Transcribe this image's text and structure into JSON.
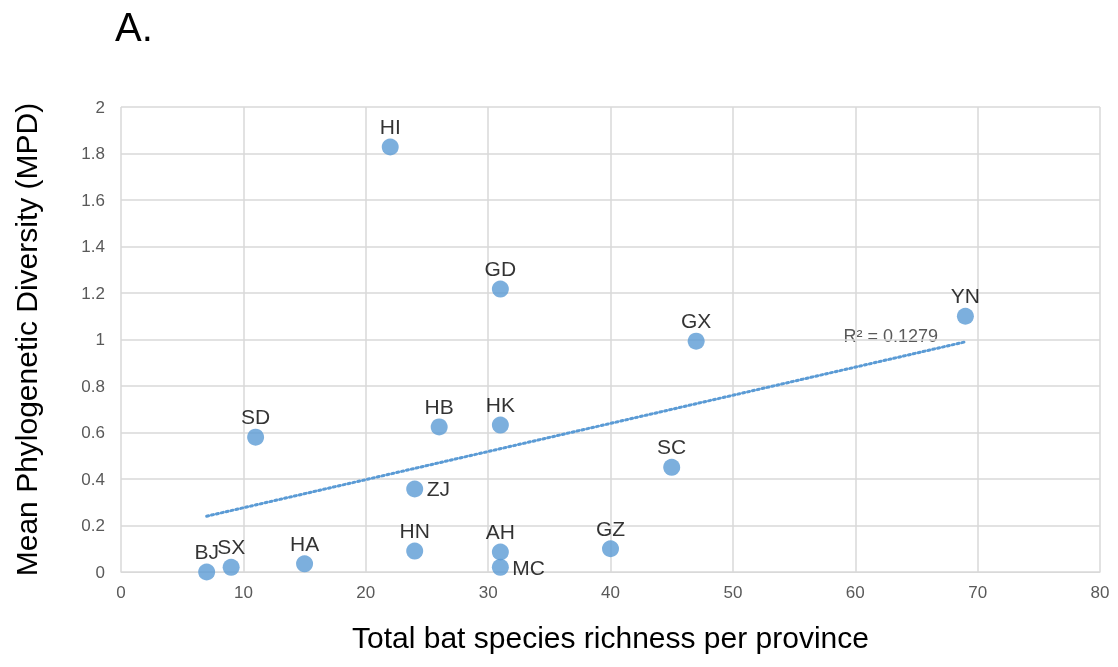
{
  "chart_data": {
    "type": "scatter",
    "title": "A.",
    "xlabel": "Total bat species richness per province",
    "ylabel": "Mean Phylogenetic Diversity (MPD)",
    "x": [
      7,
      9,
      15,
      24,
      31,
      31,
      40,
      24,
      11,
      26,
      31,
      45,
      47,
      69,
      31,
      22
    ],
    "series": [
      {
        "color": "#5b9bd5",
        "marker": "circle",
        "values": [
          0.0,
          0.02,
          0.035,
          0.09,
          0.086,
          0.02,
          0.1,
          0.357,
          0.58,
          0.624,
          0.632,
          0.45,
          0.993,
          1.1,
          1.217,
          1.828
        ]
      },
      {
        "type": "line",
        "color": "#5b9bd5",
        "marker": "none",
        "line_style": "dotted",
        "x": [
          7,
          69
        ],
        "values": [
          0.24,
          0.99
        ]
      }
    ],
    "annotations": [
      {
        "text": "BJ",
        "x": 7,
        "y": 0.0
      },
      {
        "text": "SX",
        "x": 9,
        "y": 0.02
      },
      {
        "text": "HA",
        "x": 15,
        "y": 0.035
      },
      {
        "text": "HN",
        "x": 24,
        "y": 0.09
      },
      {
        "text": "AH",
        "x": 31,
        "y": 0.086
      },
      {
        "text": "MC",
        "x": 31,
        "y": 0.02
      },
      {
        "text": "GZ",
        "x": 40,
        "y": 0.1
      },
      {
        "text": "ZJ",
        "x": 24,
        "y": 0.357
      },
      {
        "text": "SD",
        "x": 11,
        "y": 0.58
      },
      {
        "text": "HB",
        "x": 26,
        "y": 0.624
      },
      {
        "text": "HK",
        "x": 31,
        "y": 0.632
      },
      {
        "text": "SC",
        "x": 45,
        "y": 0.45
      },
      {
        "text": "GX",
        "x": 47,
        "y": 0.993
      },
      {
        "text": "YN",
        "x": 69,
        "y": 1.1
      },
      {
        "text": "GD",
        "x": 31,
        "y": 1.217
      },
      {
        "text": "HI",
        "x": 22,
        "y": 1.828
      },
      "R² = 0.1279"
    ],
    "xlim": [
      0,
      80
    ],
    "xticks": [
      0,
      10,
      20,
      30,
      40,
      50,
      60,
      70,
      80
    ],
    "ylim": [
      0,
      2
    ],
    "yticks": [
      0,
      0.2,
      0.4,
      0.6,
      0.8,
      1,
      1.2,
      1.4,
      1.6,
      1.8,
      2
    ],
    "grid": true
  }
}
